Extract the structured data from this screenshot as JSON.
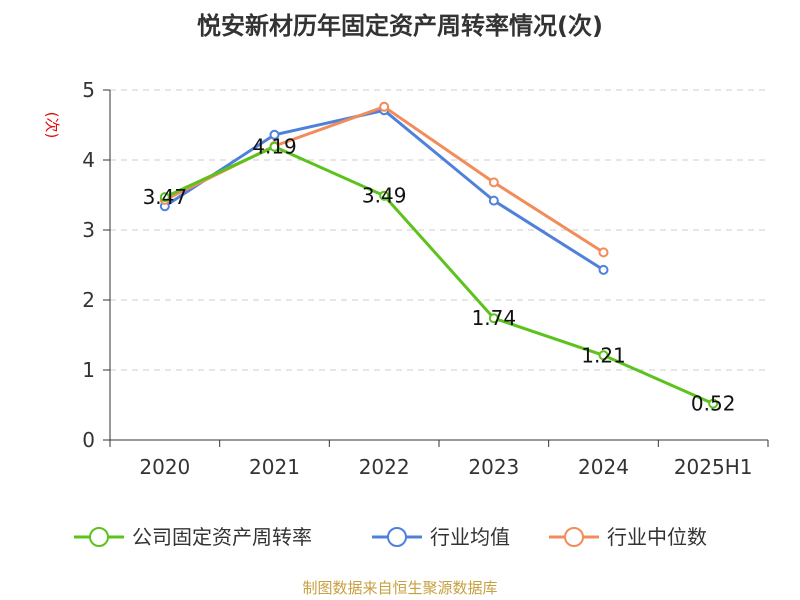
{
  "chart_data": {
    "type": "line",
    "title": "悦安新材历年固定资产周转率情况(次)",
    "ylabel": "(次)",
    "categories": [
      "2020",
      "2021",
      "2022",
      "2023",
      "2024",
      "2025H1"
    ],
    "ylim": [
      0,
      5
    ],
    "yticks": [
      "0",
      "1",
      "2",
      "3",
      "4",
      "5"
    ],
    "grid": true,
    "legend_position": "bottom",
    "series": [
      {
        "name": "公司固定资产周转率",
        "color": "#5cc21c",
        "values": [
          3.47,
          4.19,
          3.49,
          1.74,
          1.21,
          0.52
        ],
        "labels": [
          "3.47",
          "4.19",
          "3.49",
          "1.74",
          "1.21",
          "0.52"
        ]
      },
      {
        "name": "行业均值",
        "color": "#4f81db",
        "values": [
          3.34,
          4.36,
          4.71,
          3.42,
          2.43,
          null
        ]
      },
      {
        "name": "行业中位数",
        "color": "#f28c5a",
        "values": [
          3.43,
          4.2,
          4.76,
          3.68,
          2.68,
          null
        ]
      }
    ]
  },
  "source": "制图数据来自恒生聚源数据库"
}
